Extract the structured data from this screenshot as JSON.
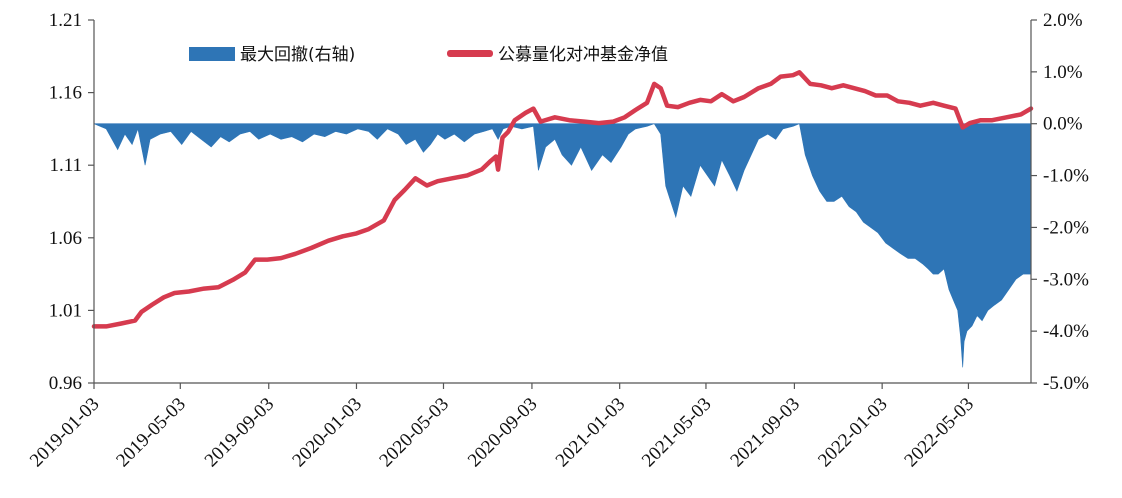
{
  "chart_data": {
    "type": "line",
    "title": "",
    "xlabel": "",
    "x_date_range": [
      "2019-01-03",
      "2022-07-29"
    ],
    "x_ticks": [
      "2019-01-03",
      "2019-05-03",
      "2019-09-03",
      "2020-01-03",
      "2020-05-03",
      "2020-09-03",
      "2021-01-03",
      "2021-05-03",
      "2021-09-03",
      "2022-01-03",
      "2022-05-03"
    ],
    "y_left": {
      "ticks": [
        "0.96",
        "1.01",
        "1.06",
        "1.11",
        "1.16",
        "1.21"
      ],
      "ylim": [
        0.96,
        1.21
      ]
    },
    "y_right": {
      "ticks": [
        "2.0%",
        "1.0%",
        "0.0%",
        "-1.0%",
        "-2.0%",
        "-3.0%",
        "-4.0%",
        "-5.0%"
      ],
      "ylim": [
        -5.0,
        2.0
      ],
      "unit": "%"
    },
    "legend": {
      "placement": "top",
      "entries": [
        "最大回撤(右轴)",
        "公募量化对冲基金净值"
      ]
    },
    "grid": false,
    "colors": {
      "drawdown": "#2E75B6",
      "nav": "#D63B4F",
      "axis": "#555555"
    },
    "series": [
      {
        "name": "公募量化对冲基金净值",
        "axis": "left",
        "style": "line",
        "points": [
          [
            "2019-01-03",
            0.999
          ],
          [
            "2019-01-20",
            0.999
          ],
          [
            "2019-02-10",
            1.001
          ],
          [
            "2019-03-01",
            1.003
          ],
          [
            "2019-03-10",
            1.009
          ],
          [
            "2019-03-25",
            1.014
          ],
          [
            "2019-04-10",
            1.019
          ],
          [
            "2019-04-25",
            1.022
          ],
          [
            "2019-05-15",
            1.023
          ],
          [
            "2019-06-05",
            1.025
          ],
          [
            "2019-06-25",
            1.026
          ],
          [
            "2019-07-15",
            1.031
          ],
          [
            "2019-08-01",
            1.036
          ],
          [
            "2019-08-15",
            1.045
          ],
          [
            "2019-09-01",
            1.045
          ],
          [
            "2019-09-20",
            1.046
          ],
          [
            "2019-10-10",
            1.049
          ],
          [
            "2019-11-01",
            1.053
          ],
          [
            "2019-11-25",
            1.058
          ],
          [
            "2019-12-15",
            1.061
          ],
          [
            "2020-01-03",
            1.063
          ],
          [
            "2020-01-20",
            1.066
          ],
          [
            "2020-02-10",
            1.072
          ],
          [
            "2020-02-25",
            1.086
          ],
          [
            "2020-03-10",
            1.093
          ],
          [
            "2020-03-25",
            1.101
          ],
          [
            "2020-04-10",
            1.096
          ],
          [
            "2020-04-25",
            1.099
          ],
          [
            "2020-05-15",
            1.101
          ],
          [
            "2020-06-05",
            1.103
          ],
          [
            "2020-06-25",
            1.107
          ],
          [
            "2020-07-08",
            1.113
          ],
          [
            "2020-07-15",
            1.116
          ],
          [
            "2020-07-18",
            1.107
          ],
          [
            "2020-07-24",
            1.129
          ],
          [
            "2020-08-01",
            1.133
          ],
          [
            "2020-08-10",
            1.141
          ],
          [
            "2020-08-25",
            1.146
          ],
          [
            "2020-09-05",
            1.149
          ],
          [
            "2020-09-15",
            1.14
          ],
          [
            "2020-10-05",
            1.143
          ],
          [
            "2020-10-25",
            1.141
          ],
          [
            "2020-11-15",
            1.14
          ],
          [
            "2020-12-05",
            1.139
          ],
          [
            "2020-12-25",
            1.14
          ],
          [
            "2021-01-10",
            1.143
          ],
          [
            "2021-01-25",
            1.148
          ],
          [
            "2021-02-10",
            1.153
          ],
          [
            "2021-02-20",
            1.166
          ],
          [
            "2021-03-01",
            1.163
          ],
          [
            "2021-03-10",
            1.151
          ],
          [
            "2021-03-25",
            1.15
          ],
          [
            "2021-04-10",
            1.153
          ],
          [
            "2021-04-25",
            1.155
          ],
          [
            "2021-05-10",
            1.154
          ],
          [
            "2021-05-25",
            1.159
          ],
          [
            "2021-06-10",
            1.154
          ],
          [
            "2021-06-25",
            1.157
          ],
          [
            "2021-07-15",
            1.163
          ],
          [
            "2021-08-01",
            1.166
          ],
          [
            "2021-08-15",
            1.171
          ],
          [
            "2021-09-01",
            1.172
          ],
          [
            "2021-09-10",
            1.174
          ],
          [
            "2021-09-25",
            1.166
          ],
          [
            "2021-10-10",
            1.165
          ],
          [
            "2021-10-25",
            1.163
          ],
          [
            "2021-11-10",
            1.165
          ],
          [
            "2021-11-25",
            1.163
          ],
          [
            "2021-12-10",
            1.161
          ],
          [
            "2021-12-25",
            1.158
          ],
          [
            "2022-01-10",
            1.158
          ],
          [
            "2022-01-25",
            1.154
          ],
          [
            "2022-02-10",
            1.153
          ],
          [
            "2022-02-25",
            1.151
          ],
          [
            "2022-03-15",
            1.153
          ],
          [
            "2022-03-30",
            1.151
          ],
          [
            "2022-04-15",
            1.149
          ],
          [
            "2022-04-25",
            1.136
          ],
          [
            "2022-05-05",
            1.139
          ],
          [
            "2022-05-20",
            1.141
          ],
          [
            "2022-06-05",
            1.141
          ],
          [
            "2022-06-25",
            1.143
          ],
          [
            "2022-07-15",
            1.145
          ],
          [
            "2022-07-29",
            1.149
          ]
        ]
      },
      {
        "name": "最大回撤(右轴)",
        "axis": "right",
        "style": "area",
        "points": [
          [
            "2019-01-03",
            0.0
          ],
          [
            "2019-01-20",
            -0.1
          ],
          [
            "2019-02-05",
            -0.5
          ],
          [
            "2019-02-15",
            -0.2
          ],
          [
            "2019-02-25",
            -0.4
          ],
          [
            "2019-03-05",
            -0.1
          ],
          [
            "2019-03-15",
            -0.8
          ],
          [
            "2019-03-22",
            -0.3
          ],
          [
            "2019-04-05",
            -0.2
          ],
          [
            "2019-04-20",
            -0.15
          ],
          [
            "2019-05-05",
            -0.4
          ],
          [
            "2019-05-18",
            -0.15
          ],
          [
            "2019-06-01",
            -0.3
          ],
          [
            "2019-06-15",
            -0.45
          ],
          [
            "2019-06-28",
            -0.25
          ],
          [
            "2019-07-10",
            -0.35
          ],
          [
            "2019-07-25",
            -0.2
          ],
          [
            "2019-08-08",
            -0.15
          ],
          [
            "2019-08-20",
            -0.3
          ],
          [
            "2019-09-05",
            -0.2
          ],
          [
            "2019-09-20",
            -0.3
          ],
          [
            "2019-10-05",
            -0.25
          ],
          [
            "2019-10-20",
            -0.35
          ],
          [
            "2019-11-05",
            -0.2
          ],
          [
            "2019-11-20",
            -0.25
          ],
          [
            "2019-12-05",
            -0.15
          ],
          [
            "2019-12-20",
            -0.2
          ],
          [
            "2020-01-05",
            -0.1
          ],
          [
            "2020-01-20",
            -0.15
          ],
          [
            "2020-02-01",
            -0.3
          ],
          [
            "2020-02-15",
            -0.1
          ],
          [
            "2020-03-01",
            -0.2
          ],
          [
            "2020-03-12",
            -0.4
          ],
          [
            "2020-03-25",
            -0.3
          ],
          [
            "2020-04-05",
            -0.55
          ],
          [
            "2020-04-15",
            -0.4
          ],
          [
            "2020-04-25",
            -0.2
          ],
          [
            "2020-05-05",
            -0.3
          ],
          [
            "2020-05-18",
            -0.2
          ],
          [
            "2020-06-01",
            -0.35
          ],
          [
            "2020-06-15",
            -0.2
          ],
          [
            "2020-06-28",
            -0.15
          ],
          [
            "2020-07-10",
            -0.1
          ],
          [
            "2020-07-18",
            -0.3
          ],
          [
            "2020-07-25",
            -0.1
          ],
          [
            "2020-08-05",
            -0.05
          ],
          [
            "2020-08-20",
            -0.1
          ],
          [
            "2020-09-05",
            -0.05
          ],
          [
            "2020-09-12",
            -0.9
          ],
          [
            "2020-09-22",
            -0.45
          ],
          [
            "2020-10-05",
            -0.3
          ],
          [
            "2020-10-15",
            -0.6
          ],
          [
            "2020-10-28",
            -0.8
          ],
          [
            "2020-11-10",
            -0.45
          ],
          [
            "2020-11-25",
            -0.9
          ],
          [
            "2020-12-10",
            -0.6
          ],
          [
            "2020-12-22",
            -0.75
          ],
          [
            "2021-01-05",
            -0.45
          ],
          [
            "2021-01-15",
            -0.2
          ],
          [
            "2021-01-25",
            -0.1
          ],
          [
            "2021-02-10",
            -0.05
          ],
          [
            "2021-02-20",
            0.0
          ],
          [
            "2021-03-01",
            -0.2
          ],
          [
            "2021-03-08",
            -1.2
          ],
          [
            "2021-03-15",
            -1.5
          ],
          [
            "2021-03-22",
            -1.8
          ],
          [
            "2021-04-01",
            -1.2
          ],
          [
            "2021-04-12",
            -1.4
          ],
          [
            "2021-04-25",
            -0.8
          ],
          [
            "2021-05-05",
            -1.0
          ],
          [
            "2021-05-15",
            -1.2
          ],
          [
            "2021-05-25",
            -0.7
          ],
          [
            "2021-06-05",
            -1.0
          ],
          [
            "2021-06-15",
            -1.3
          ],
          [
            "2021-06-25",
            -0.9
          ],
          [
            "2021-07-05",
            -0.6
          ],
          [
            "2021-07-15",
            -0.3
          ],
          [
            "2021-07-28",
            -0.2
          ],
          [
            "2021-08-08",
            -0.3
          ],
          [
            "2021-08-18",
            -0.1
          ],
          [
            "2021-09-01",
            -0.05
          ],
          [
            "2021-09-10",
            0.0
          ],
          [
            "2021-09-18",
            -0.6
          ],
          [
            "2021-09-28",
            -1.0
          ],
          [
            "2021-10-08",
            -1.3
          ],
          [
            "2021-10-18",
            -1.5
          ],
          [
            "2021-10-28",
            -1.5
          ],
          [
            "2021-11-08",
            -1.4
          ],
          [
            "2021-11-18",
            -1.6
          ],
          [
            "2021-11-28",
            -1.7
          ],
          [
            "2021-12-08",
            -1.9
          ],
          [
            "2021-12-18",
            -2.0
          ],
          [
            "2021-12-28",
            -2.1
          ],
          [
            "2022-01-08",
            -2.3
          ],
          [
            "2022-01-18",
            -2.4
          ],
          [
            "2022-01-28",
            -2.5
          ],
          [
            "2022-02-08",
            -2.6
          ],
          [
            "2022-02-18",
            -2.6
          ],
          [
            "2022-02-28",
            -2.7
          ],
          [
            "2022-03-08",
            -2.8
          ],
          [
            "2022-03-15",
            -2.9
          ],
          [
            "2022-03-22",
            -2.9
          ],
          [
            "2022-03-30",
            -2.8
          ],
          [
            "2022-04-06",
            -3.2
          ],
          [
            "2022-04-12",
            -3.4
          ],
          [
            "2022-04-18",
            -3.6
          ],
          [
            "2022-04-22",
            -4.1
          ],
          [
            "2022-04-25",
            -4.7
          ],
          [
            "2022-04-27",
            -4.2
          ],
          [
            "2022-05-01",
            -4.0
          ],
          [
            "2022-05-08",
            -3.9
          ],
          [
            "2022-05-15",
            -3.7
          ],
          [
            "2022-05-22",
            -3.8
          ],
          [
            "2022-05-30",
            -3.6
          ],
          [
            "2022-06-08",
            -3.5
          ],
          [
            "2022-06-18",
            -3.4
          ],
          [
            "2022-06-28",
            -3.2
          ],
          [
            "2022-07-08",
            -3.0
          ],
          [
            "2022-07-18",
            -2.9
          ],
          [
            "2022-07-29",
            -2.9
          ]
        ]
      }
    ]
  }
}
